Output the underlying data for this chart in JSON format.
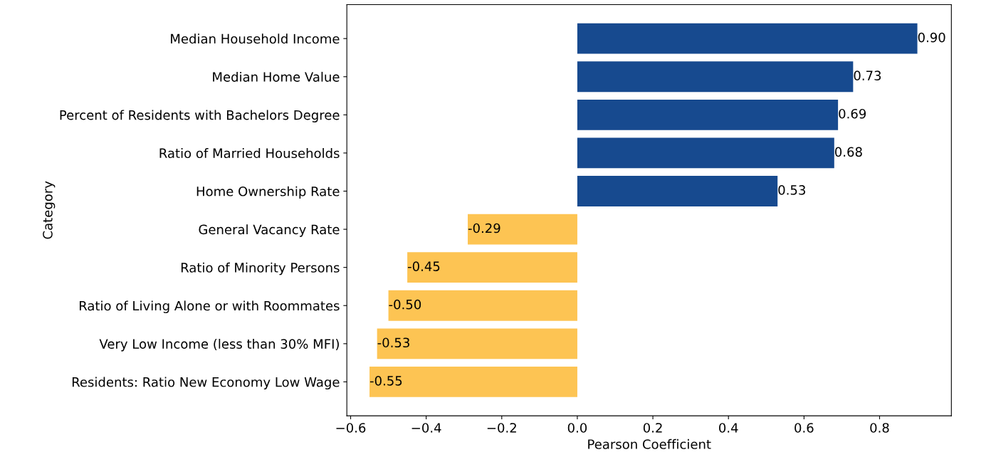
{
  "chart_data": {
    "type": "bar",
    "orientation": "horizontal",
    "ylabel": "Category",
    "xlabel": "Pearson Coefficient",
    "categories": [
      "Median Household Income",
      "Median Home Value",
      "Percent of Residents with Bachelors Degree",
      "Ratio of Married Households",
      "Home Ownership Rate",
      "General Vacancy Rate",
      "Ratio of Minority Persons",
      "Ratio of Living Alone or with Roommates",
      "Very Low Income (less than 30% MFI)",
      "Residents: Ratio New Economy Low Wage"
    ],
    "values": [
      0.9,
      0.73,
      0.69,
      0.68,
      0.53,
      -0.29,
      -0.45,
      -0.5,
      -0.53,
      -0.55
    ],
    "colors": [
      "#174a8f",
      "#174a8f",
      "#174a8f",
      "#174a8f",
      "#174a8f",
      "#fdc453",
      "#fdc453",
      "#fdc453",
      "#fdc453",
      "#fdc453"
    ],
    "value_labels": [
      "0.90",
      "0.73",
      "0.69",
      "0.68",
      "0.53",
      "-0.29",
      "-0.45",
      "-0.50",
      "-0.53",
      "-0.55"
    ],
    "grid": false,
    "xlim": [
      -0.61,
      0.99
    ],
    "xticks": [
      {
        "value": -0.6,
        "label": "−0.6"
      },
      {
        "value": -0.4,
        "label": "−0.4"
      },
      {
        "value": -0.2,
        "label": "−0.2"
      },
      {
        "value": 0.0,
        "label": "0.0"
      },
      {
        "value": 0.2,
        "label": "0.2"
      },
      {
        "value": 0.4,
        "label": "0.4"
      },
      {
        "value": 0.6,
        "label": "0.6"
      },
      {
        "value": 0.8,
        "label": "0.8"
      }
    ]
  }
}
